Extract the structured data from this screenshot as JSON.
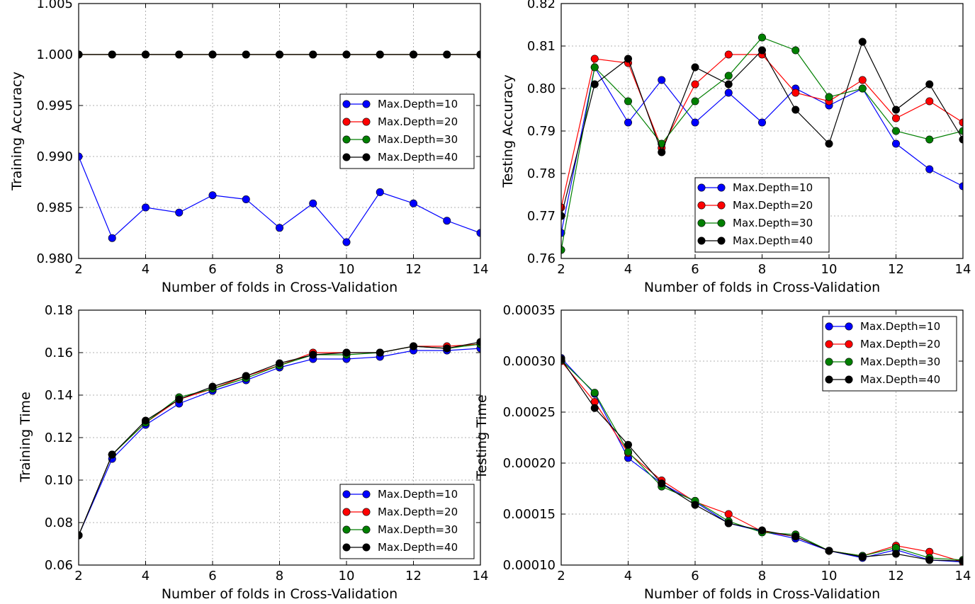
{
  "colors": {
    "d10": "#0000ff",
    "d20": "#ff0000",
    "d30": "#007f00",
    "d40": "#000000"
  },
  "chart_data": [
    {
      "type": "line",
      "xlabel": "Number of folds in Cross-Validation",
      "ylabel": "Training Accuracy",
      "xlim": [
        2,
        14
      ],
      "ylim": [
        0.98,
        1.005
      ],
      "xticks": [
        2,
        4,
        6,
        8,
        10,
        12,
        14
      ],
      "xtick_labels": [
        "2",
        "4",
        "6",
        "8",
        "10",
        "12",
        "14"
      ],
      "yticks": [
        0.98,
        0.985,
        0.99,
        0.995,
        1.0,
        1.005
      ],
      "ytick_labels": [
        "0.980",
        "0.985",
        "0.990",
        "0.995",
        "1.000",
        "1.005"
      ],
      "grid": true,
      "legend": "right",
      "x": [
        2,
        3,
        4,
        5,
        6,
        7,
        8,
        9,
        10,
        11,
        12,
        13,
        14
      ],
      "series": [
        {
          "name": "Max.Depth=10",
          "color": "#0000ff",
          "values": [
            0.99,
            0.982,
            0.985,
            0.9845,
            0.9862,
            0.9858,
            0.983,
            0.9854,
            0.9816,
            0.9865,
            0.9854,
            0.9837,
            0.9825
          ]
        },
        {
          "name": "Max.Depth=20",
          "color": "#ff0000",
          "values": [
            1.0,
            1.0,
            1.0,
            1.0,
            1.0,
            1.0,
            1.0,
            1.0,
            1.0,
            1.0,
            1.0,
            1.0,
            1.0
          ]
        },
        {
          "name": "Max.Depth=30",
          "color": "#007f00",
          "values": [
            1.0,
            1.0,
            1.0,
            1.0,
            1.0,
            1.0,
            1.0,
            1.0,
            1.0,
            1.0,
            1.0,
            1.0,
            1.0
          ]
        },
        {
          "name": "Max.Depth=40",
          "color": "#000000",
          "values": [
            1.0,
            1.0,
            1.0,
            1.0,
            1.0,
            1.0,
            1.0,
            1.0,
            1.0,
            1.0,
            1.0,
            1.0,
            1.0
          ]
        }
      ]
    },
    {
      "type": "line",
      "xlabel": "Number of folds in Cross-Validation",
      "ylabel": "Testing Accuracy",
      "xlim": [
        2,
        14
      ],
      "ylim": [
        0.76,
        0.82
      ],
      "xticks": [
        2,
        4,
        6,
        8,
        10,
        12,
        14
      ],
      "xtick_labels": [
        "2",
        "4",
        "6",
        "8",
        "10",
        "12",
        "14"
      ],
      "yticks": [
        0.76,
        0.77,
        0.78,
        0.79,
        0.8,
        0.81,
        0.82
      ],
      "ytick_labels": [
        "0.76",
        "0.77",
        "0.78",
        "0.79",
        "0.80",
        "0.81",
        "0.82"
      ],
      "grid": true,
      "legend": "lower-center",
      "x": [
        2,
        3,
        4,
        5,
        6,
        7,
        8,
        9,
        10,
        11,
        12,
        13,
        14
      ],
      "series": [
        {
          "name": "Max.Depth=10",
          "color": "#0000ff",
          "values": [
            0.766,
            0.805,
            0.792,
            0.802,
            0.792,
            0.799,
            0.792,
            0.8,
            0.796,
            0.8,
            0.787,
            0.781,
            0.777
          ]
        },
        {
          "name": "Max.Depth=20",
          "color": "#ff0000",
          "values": [
            0.772,
            0.807,
            0.806,
            0.786,
            0.801,
            0.808,
            0.808,
            0.799,
            0.797,
            0.802,
            0.793,
            0.797,
            0.792
          ]
        },
        {
          "name": "Max.Depth=30",
          "color": "#007f00",
          "values": [
            0.762,
            0.805,
            0.797,
            0.787,
            0.797,
            0.803,
            0.812,
            0.809,
            0.798,
            0.8,
            0.79,
            0.788,
            0.79
          ]
        },
        {
          "name": "Max.Depth=40",
          "color": "#000000",
          "values": [
            0.77,
            0.801,
            0.807,
            0.785,
            0.805,
            0.801,
            0.809,
            0.795,
            0.787,
            0.811,
            0.795,
            0.801,
            0.788
          ]
        }
      ]
    },
    {
      "type": "line",
      "xlabel": "Number of folds in Cross-Validation",
      "ylabel": "Training Time",
      "xlim": [
        2,
        14
      ],
      "ylim": [
        0.06,
        0.18
      ],
      "xticks": [
        2,
        4,
        6,
        8,
        10,
        12,
        14
      ],
      "xtick_labels": [
        "2",
        "4",
        "6",
        "8",
        "10",
        "12",
        "14"
      ],
      "yticks": [
        0.06,
        0.08,
        0.1,
        0.12,
        0.14,
        0.16,
        0.18
      ],
      "ytick_labels": [
        "0.06",
        "0.08",
        "0.10",
        "0.12",
        "0.14",
        "0.16",
        "0.18"
      ],
      "grid": true,
      "legend": "lower-right",
      "x": [
        2,
        3,
        4,
        5,
        6,
        7,
        8,
        9,
        10,
        11,
        12,
        13,
        14
      ],
      "series": [
        {
          "name": "Max.Depth=10",
          "color": "#0000ff",
          "values": [
            0.074,
            0.11,
            0.126,
            0.136,
            0.142,
            0.147,
            0.153,
            0.157,
            0.157,
            0.158,
            0.161,
            0.161,
            0.162
          ]
        },
        {
          "name": "Max.Depth=20",
          "color": "#ff0000",
          "values": [
            0.074,
            0.112,
            0.127,
            0.138,
            0.143,
            0.149,
            0.154,
            0.16,
            0.16,
            0.16,
            0.163,
            0.163,
            0.164
          ]
        },
        {
          "name": "Max.Depth=30",
          "color": "#007f00",
          "values": [
            0.074,
            0.112,
            0.127,
            0.139,
            0.143,
            0.148,
            0.154,
            0.159,
            0.159,
            0.16,
            0.163,
            0.162,
            0.164
          ]
        },
        {
          "name": "Max.Depth=40",
          "color": "#000000",
          "values": [
            0.074,
            0.112,
            0.128,
            0.138,
            0.144,
            0.149,
            0.155,
            0.159,
            0.16,
            0.16,
            0.163,
            0.162,
            0.165
          ]
        }
      ]
    },
    {
      "type": "line",
      "xlabel": "Number of folds in Cross-Validation",
      "ylabel": "Testing Time",
      "xlim": [
        2,
        14
      ],
      "ylim": [
        0.0001,
        0.00035
      ],
      "xticks": [
        2,
        4,
        6,
        8,
        10,
        12,
        14
      ],
      "xtick_labels": [
        "2",
        "4",
        "6",
        "8",
        "10",
        "12",
        "14"
      ],
      "yticks": [
        0.0001,
        0.00015,
        0.0002,
        0.00025,
        0.0003,
        0.00035
      ],
      "ytick_labels": [
        "0.00010",
        "0.00015",
        "0.00020",
        "0.00025",
        "0.00030",
        "0.00035"
      ],
      "grid": true,
      "legend": "upper-right",
      "x": [
        2,
        3,
        4,
        5,
        6,
        7,
        8,
        9,
        10,
        11,
        12,
        13,
        14
      ],
      "series": [
        {
          "name": "Max.Depth=10",
          "color": "#0000ff",
          "values": [
            0.000303,
            0.000268,
            0.000205,
            0.00018,
            0.000162,
            0.000141,
            0.000133,
            0.000126,
            0.000114,
            0.000107,
            0.000115,
            0.000105,
            0.000103
          ]
        },
        {
          "name": "Max.Depth=20",
          "color": "#ff0000",
          "values": [
            0.0003,
            0.00026,
            0.00021,
            0.000183,
            0.000162,
            0.00015,
            0.000133,
            0.000128,
            0.000114,
            0.000109,
            0.000119,
            0.000113,
            0.000103
          ]
        },
        {
          "name": "Max.Depth=30",
          "color": "#007f00",
          "values": [
            0.000301,
            0.000269,
            0.000211,
            0.000177,
            0.000163,
            0.000143,
            0.000132,
            0.00013,
            0.000114,
            0.000109,
            0.000117,
            0.000107,
            0.000105
          ]
        },
        {
          "name": "Max.Depth=40",
          "color": "#000000",
          "values": [
            0.000302,
            0.000254,
            0.000218,
            0.00018,
            0.000159,
            0.000141,
            0.000134,
            0.000128,
            0.000114,
            0.000108,
            0.000111,
            0.000105,
            0.000104
          ]
        }
      ]
    }
  ]
}
